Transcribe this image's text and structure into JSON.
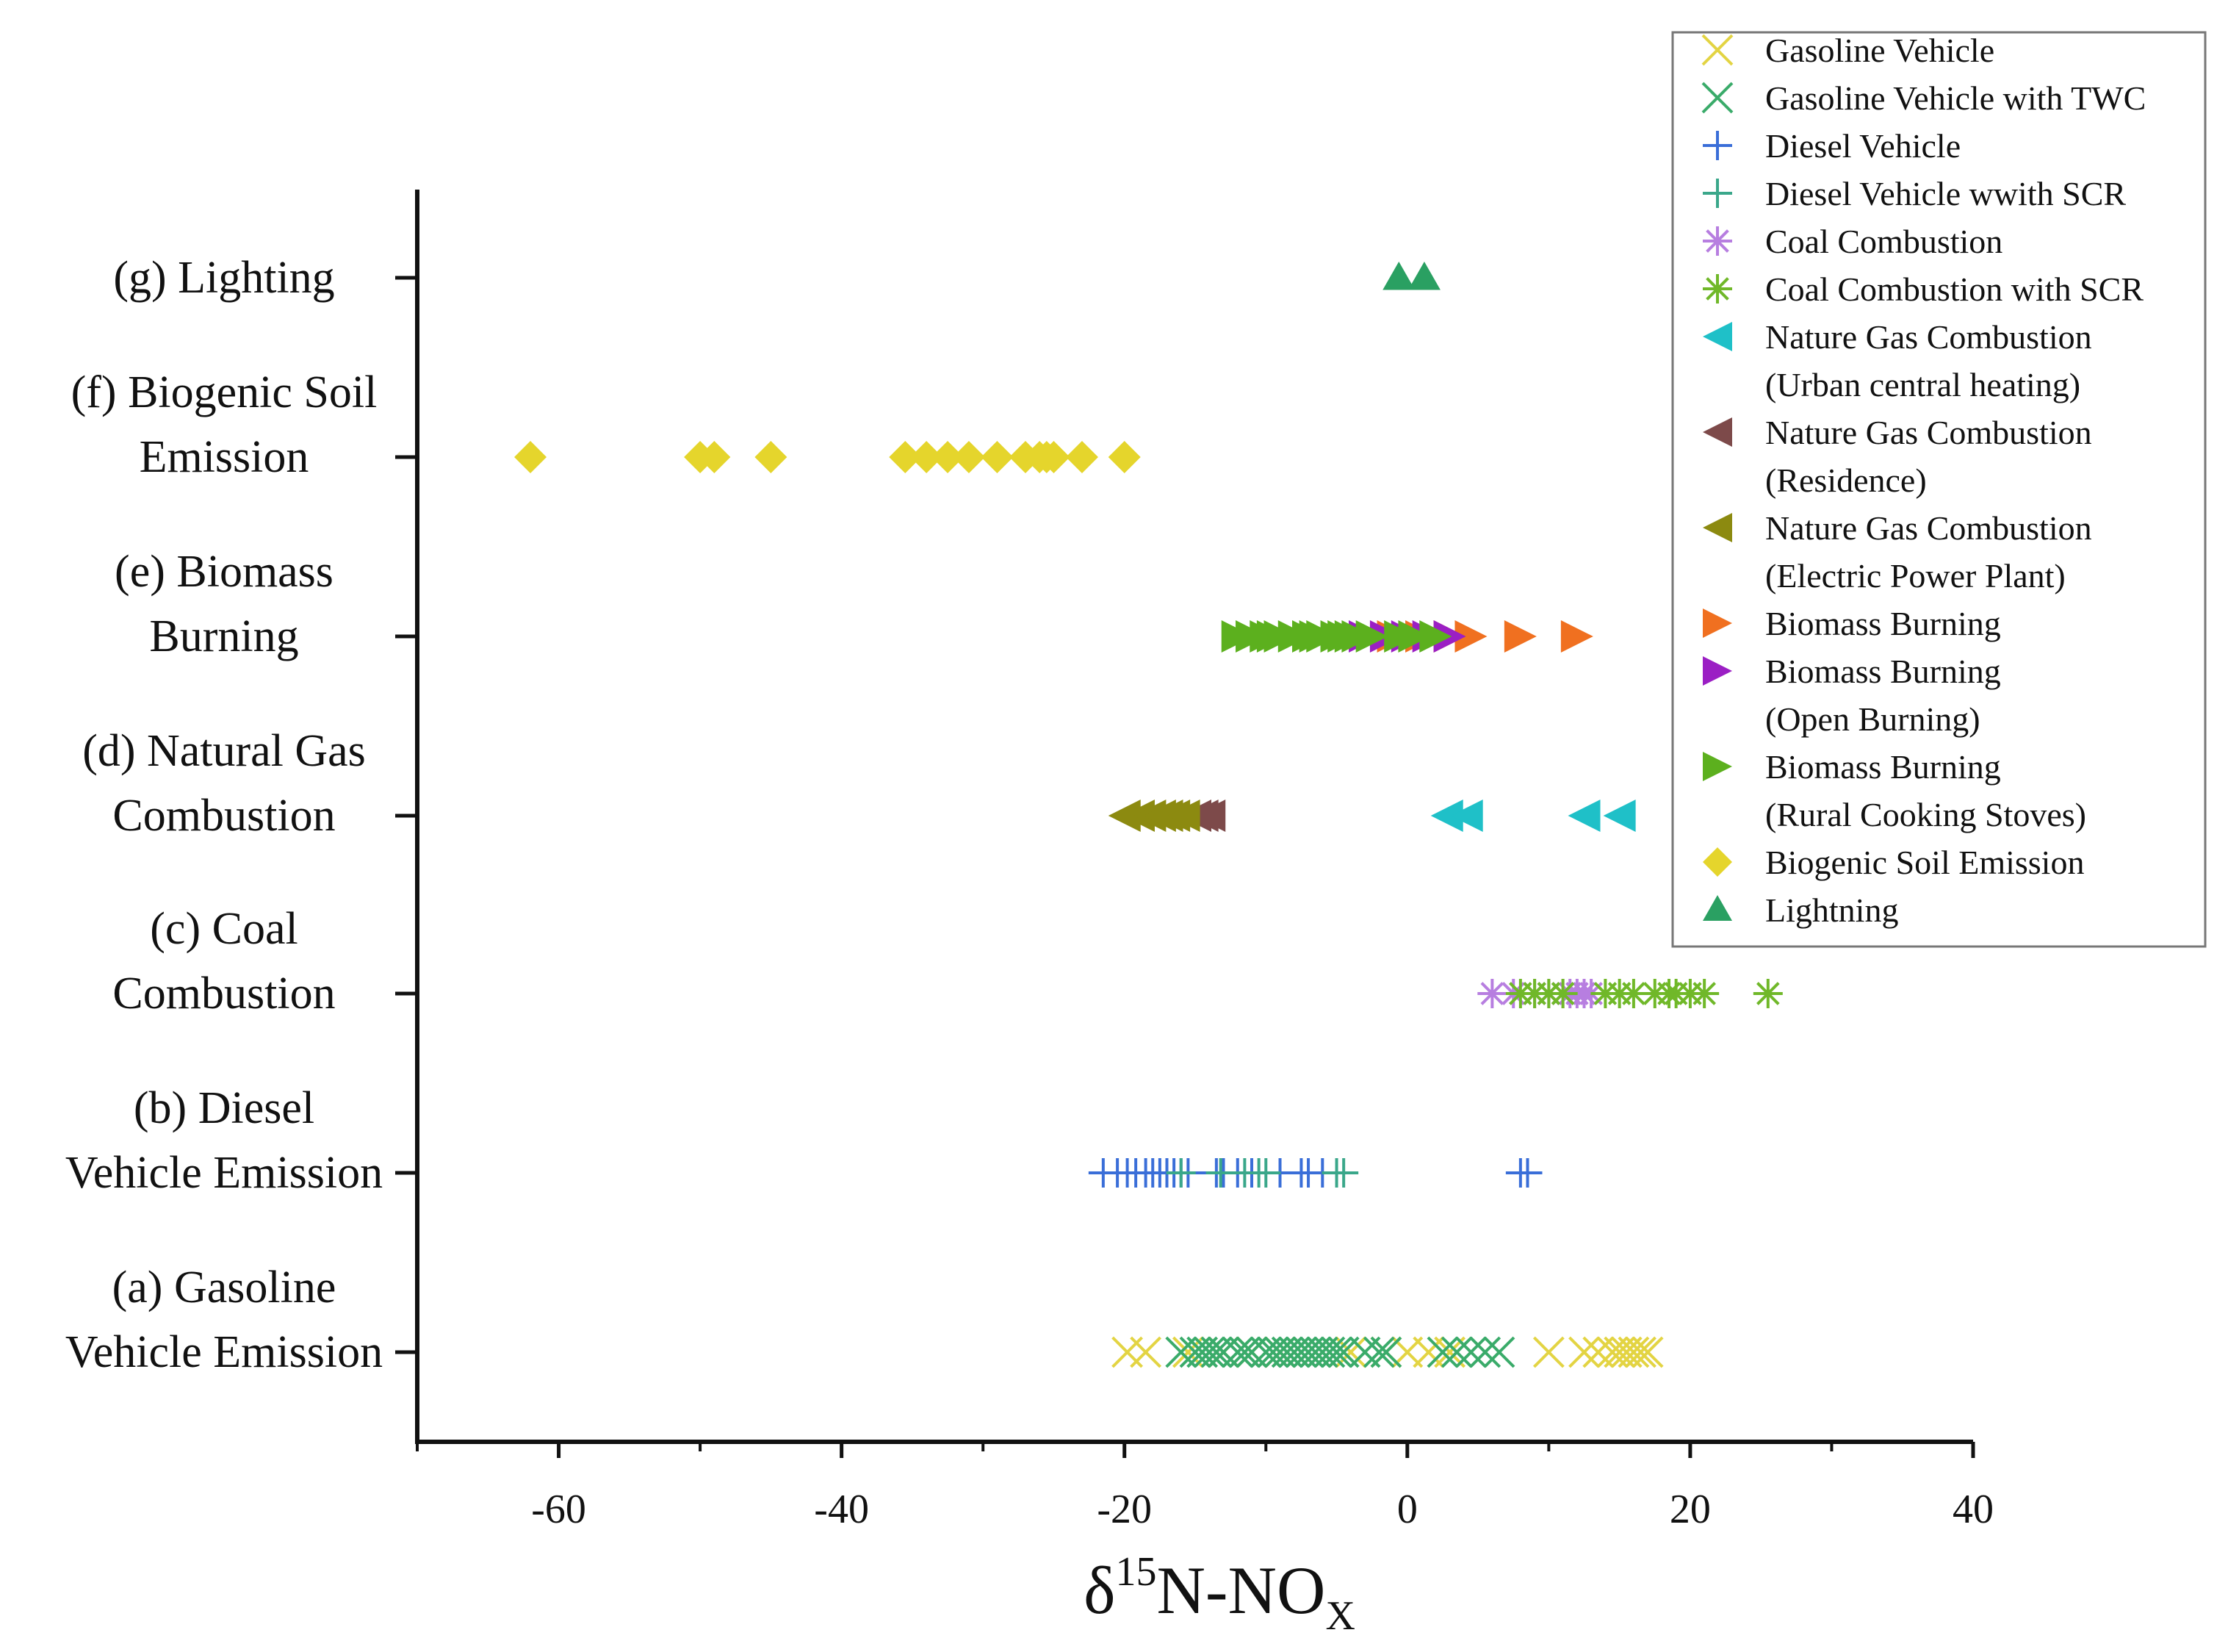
{
  "chart_data": {
    "type": "scatter",
    "xlabel": {
      "prefix": "δ",
      "sup": "15",
      "main": "N-NO",
      "sub": "X"
    },
    "xlim": [
      -70,
      40
    ],
    "xticks": [
      -60,
      -40,
      -20,
      0,
      20,
      40
    ],
    "xtick_labels": [
      "-60",
      "-40",
      "-20",
      "0",
      "20",
      "40"
    ],
    "grid": false,
    "legend_position": "top-right",
    "categories": [
      {
        "lines": [
          "(a) Gasoline",
          "Vehicle Emission"
        ]
      },
      {
        "lines": [
          "(b) Diesel",
          "Vehicle Emission"
        ]
      },
      {
        "lines": [
          "(c) Coal",
          "Combustion"
        ]
      },
      {
        "lines": [
          "(d) Natural Gas",
          "Combustion"
        ]
      },
      {
        "lines": [
          "(e) Biomass",
          "Burning"
        ]
      },
      {
        "lines": [
          "(f) Biogenic Soil",
          "Emission"
        ]
      },
      {
        "lines": [
          "(g) Lighting"
        ]
      }
    ],
    "series": [
      {
        "name": "Gasoline Vehicle",
        "category": 0,
        "marker": "x",
        "color": "#e3d443",
        "x": [
          -19.8,
          -18.5,
          -15.5,
          -13,
          -11,
          -9,
          -4,
          -1.5,
          0,
          1.5,
          3,
          10,
          12.5,
          13.5,
          14.5,
          15,
          15.5,
          16,
          16.5,
          17
        ]
      },
      {
        "name": "Gasoline Vehicle with TWC",
        "category": 0,
        "marker": "x",
        "color": "#3aab6a",
        "x": [
          -16,
          -15,
          -14.5,
          -14,
          -13.5,
          -13,
          -12,
          -11.5,
          -11,
          -10,
          -9.5,
          -9,
          -8.5,
          -8,
          -7.5,
          -7,
          -6.5,
          -6,
          -5.5,
          -5,
          -4.5,
          -3,
          -2,
          -1.5,
          2.5,
          3.5,
          4.5,
          5.5,
          6.5
        ]
      },
      {
        "name": "Diesel Vehicle",
        "category": 1,
        "marker": "+",
        "color": "#3a6ed8",
        "x": [
          -21.5,
          -20.5,
          -19.8,
          -19.2,
          -18.5,
          -18,
          -17.5,
          -17,
          -16.5,
          -16,
          -15.5,
          -13.5,
          -13,
          -12,
          -11,
          -9,
          -7.5,
          -7,
          -6,
          8,
          8.5
        ]
      },
      {
        "name": "Diesel Vehicle wwith SCR",
        "category": 1,
        "marker": "+",
        "color": "#3aa78a",
        "x": [
          -16,
          -13.2,
          -11.5,
          -10.5,
          -10,
          -5,
          -4.5
        ]
      },
      {
        "name": "Coal Combustion",
        "category": 2,
        "marker": "asterisk",
        "color": "#b77ee0",
        "x": [
          6,
          7.5,
          9,
          10,
          11,
          11.5,
          12,
          12.5,
          13
        ]
      },
      {
        "name": "Coal Combustion with SCR",
        "category": 2,
        "marker": "asterisk",
        "color": "#70b829",
        "x": [
          8,
          9,
          10,
          11,
          14,
          15,
          16,
          17.5,
          18.5,
          19,
          20,
          21,
          25.5
        ]
      },
      {
        "name": "Nature Gas Combustion\n(Urban central heating)",
        "category": 3,
        "marker": "tri-left",
        "color": "#1fc0c8",
        "x": [
          2.8,
          4.2,
          12.5,
          15
        ]
      },
      {
        "name": "Nature Gas Combustion\n(Residence)",
        "category": 3,
        "marker": "tri-left",
        "color": "#7d4a4a",
        "x": [
          -15,
          -14.5,
          -14
        ]
      },
      {
        "name": "Nature Gas Combustion\n(Electric Power Plant)",
        "category": 3,
        "marker": "tri-left",
        "color": "#8c8a10",
        "x": [
          -20,
          -19,
          -18.2,
          -17.5,
          -17,
          -16.5,
          -15.8
        ]
      },
      {
        "name": "Biomass Burning",
        "category": 4,
        "marker": "tri-right",
        "color": "#f07020",
        "x": [
          -1,
          1,
          3,
          4.5,
          8,
          12
        ]
      },
      {
        "name": "Biomass Burning\n(Open Burning)",
        "category": 4,
        "marker": "tri-right",
        "color": "#9b1fc4",
        "x": [
          -3,
          -1.5,
          0,
          1.5,
          3
        ]
      },
      {
        "name": "Biomass Burning\n(Rural Cooking Stoves)",
        "category": 4,
        "marker": "tri-right",
        "color": "#5cb01e",
        "x": [
          -12,
          -11,
          -10,
          -9.5,
          -9,
          -8,
          -7,
          -6.5,
          -6,
          -5,
          -4.5,
          -4,
          -3.5,
          -2.5,
          -0.5,
          0.5,
          2
        ]
      },
      {
        "name": "Biogenic Soil Emission",
        "category": 5,
        "marker": "diamond",
        "color": "#e5d52c",
        "x": [
          -62,
          -50,
          -49,
          -45,
          -35.5,
          -34,
          -32.5,
          -31,
          -29,
          -27,
          -26,
          -25.5,
          -25,
          -23,
          -20
        ]
      },
      {
        "name": "Lightning",
        "category": 6,
        "marker": "tri-up",
        "color": "#2aa062",
        "x": [
          -0.6,
          1.2
        ]
      }
    ]
  }
}
